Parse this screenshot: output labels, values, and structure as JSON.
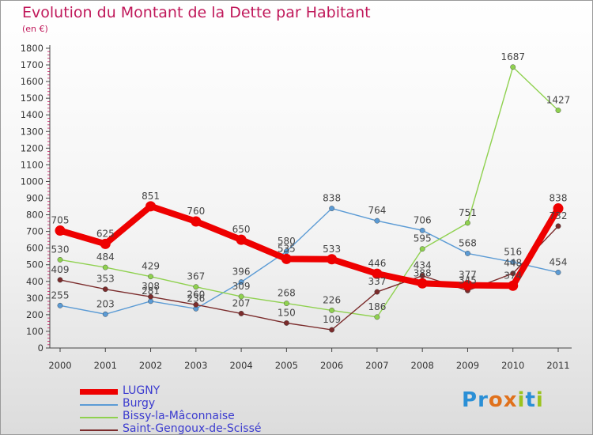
{
  "header": {
    "title": "Evolution du Montant de la Dette par Habitant",
    "subtitle": "(en €)"
  },
  "logo": {
    "text": "Proxiti",
    "colors": [
      "#2a8fd6",
      "#2a8fd6",
      "#e0711c",
      "#e0711c",
      "#9bc31f",
      "#2a8fd6",
      "#9bc31f"
    ]
  },
  "chart_data": {
    "type": "line",
    "title": "Evolution du Montant de la Dette par Habitant",
    "subtitle": "(en €)",
    "x": [
      "2000",
      "2001",
      "2002",
      "2003",
      "2004",
      "2005",
      "2006",
      "2007",
      "2008",
      "2009",
      "2010",
      "2011"
    ],
    "ylim": [
      0,
      1800
    ],
    "yticks": [
      0,
      100,
      200,
      300,
      400,
      500,
      600,
      700,
      800,
      900,
      1000,
      1100,
      1200,
      1300,
      1400,
      1500,
      1600,
      1700,
      1800
    ],
    "grid": false,
    "legend_position": "bottom-left",
    "series": [
      {
        "name": "LUGNY",
        "color": "#ee0000",
        "emphasis": true,
        "values": [
          705,
          625,
          851,
          760,
          650,
          535,
          533,
          446,
          388,
          377,
          374,
          838
        ]
      },
      {
        "name": "Burgy",
        "color": "#5b9bd5",
        "values": [
          255,
          203,
          281,
          236,
          396,
          580,
          838,
          764,
          706,
          568,
          516,
          454
        ]
      },
      {
        "name": "Bissy-la-Mâconnaise",
        "color": "#8fd14f",
        "values": [
          530,
          484,
          429,
          367,
          309,
          268,
          226,
          186,
          595,
          751,
          1687,
          1427
        ]
      },
      {
        "name": "Saint-Gengoux-de-Scissé",
        "color": "#7b2c2c",
        "values": [
          409,
          353,
          308,
          260,
          207,
          150,
          109,
          337,
          434,
          345,
          448,
          732
        ]
      }
    ],
    "labels": [
      [
        "705",
        "625",
        "851",
        "760",
        "650",
        "535",
        "533",
        "446",
        "388",
        "377",
        "374",
        "838"
      ],
      [
        "255",
        "203",
        "281",
        "236",
        "396",
        "580",
        "838",
        "764",
        "706",
        "568",
        "516",
        "454"
      ],
      [
        "530",
        "484",
        "429",
        "367",
        "309",
        "268",
        "226",
        "186",
        "595",
        "751",
        "1687",
        "1427"
      ],
      [
        "409",
        "353",
        "308",
        "260",
        "207",
        "150",
        "109",
        "337",
        "434",
        "345",
        "448",
        "732"
      ]
    ]
  }
}
